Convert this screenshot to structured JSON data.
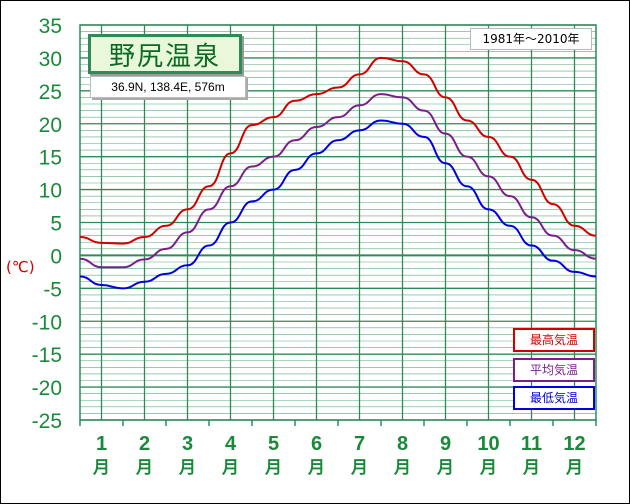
{
  "title": "野尻温泉",
  "location": "36.9N,  138.4E,  576m",
  "period": "1981年〜2010年",
  "unit": "(℃)",
  "colors": {
    "grid": "#2e8b57",
    "axis_text": "#1a8a3a",
    "max": "#d00000",
    "avg": "#7a1f8a",
    "min": "#0000dd"
  },
  "chart_data": {
    "type": "line",
    "ylim": [
      -25,
      35
    ],
    "yticks": [
      35,
      30,
      25,
      20,
      15,
      10,
      5,
      0,
      -5,
      -10,
      -15,
      -20,
      -25
    ],
    "ylabel": "(℃)",
    "xlim": [
      0.5,
      12.5
    ],
    "month_labels": [
      "1\n月",
      "2\n月",
      "3\n月",
      "4\n月",
      "5\n月",
      "6\n月",
      "7\n月",
      "8\n月",
      "9\n月",
      "10\n月",
      "11\n月",
      "12\n月"
    ],
    "x": [
      0.5,
      1,
      1.5,
      2,
      2.5,
      3,
      3.5,
      4,
      4.5,
      5,
      5.5,
      6,
      6.5,
      7,
      7.5,
      8,
      8.5,
      9,
      9.5,
      10,
      10.5,
      11,
      11.5,
      12,
      12.5
    ],
    "series": [
      {
        "name": "最高気温",
        "color": "#d00000",
        "values": [
          2.8,
          1.9,
          1.8,
          2.8,
          4.5,
          7.0,
          10.5,
          15.5,
          19.8,
          21.0,
          23.5,
          24.5,
          25.5,
          27.5,
          30.0,
          29.5,
          27.5,
          24.0,
          20.5,
          18.0,
          15.0,
          11.5,
          7.8,
          4.5,
          3.0
        ]
      },
      {
        "name": "平均気温",
        "color": "#7a1f8a",
        "values": [
          -0.5,
          -1.8,
          -1.8,
          -0.6,
          1.0,
          3.5,
          7.0,
          10.5,
          13.5,
          15.0,
          17.5,
          19.5,
          21.0,
          22.8,
          24.5,
          24.0,
          22.0,
          18.5,
          15.0,
          12.0,
          9.0,
          5.8,
          3.0,
          0.8,
          -0.5
        ]
      },
      {
        "name": "最低気温",
        "color": "#0000dd",
        "values": [
          -3.2,
          -4.5,
          -5.0,
          -4.0,
          -2.8,
          -1.5,
          1.5,
          5.0,
          8.2,
          10.0,
          13.0,
          15.5,
          17.5,
          19.0,
          20.5,
          20.0,
          18.0,
          14.0,
          10.5,
          7.0,
          4.5,
          1.5,
          -0.8,
          -2.5,
          -3.2
        ]
      }
    ],
    "legend": [
      "最高気温",
      "平均気温",
      "最低気温"
    ],
    "legend_position": "bottom-right",
    "grid": true
  }
}
